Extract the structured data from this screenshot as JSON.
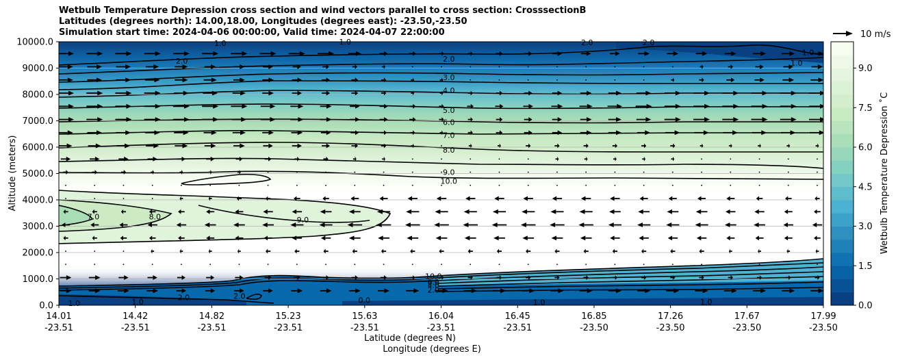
{
  "chart_data": {
    "type": "heatmap",
    "title_lines": [
      "Wetbulb Temperature Depression cross section and wind vectors parallel to cross section: CrosssectionB",
      "Latitudes (degrees north): 14.00,18.00, Longitudes (degrees east): -23.50,-23.50",
      "Simulation start time: 2024-04-06 00:00:00, Valid time: 2024-04-07 22:00:00"
    ],
    "ylabel": "Altitude (meters)",
    "xlabel_lines": [
      "Latitude (degrees N)",
      "Longitude (degrees E)"
    ],
    "ylim": [
      0,
      10000
    ],
    "y_ticks": [
      {
        "value": 0,
        "label": "0.0"
      },
      {
        "value": 1000,
        "label": "1000.0"
      },
      {
        "value": 2000,
        "label": "2000.0"
      },
      {
        "value": 3000,
        "label": "3000.0"
      },
      {
        "value": 4000,
        "label": "4000.0"
      },
      {
        "value": 5000,
        "label": "5000.0"
      },
      {
        "value": 6000,
        "label": "6000.0"
      },
      {
        "value": 7000,
        "label": "7000.0"
      },
      {
        "value": 8000,
        "label": "8000.0"
      },
      {
        "value": 9000,
        "label": "9000.0"
      },
      {
        "value": 10000,
        "label": "10000.0"
      }
    ],
    "x_ticks": [
      {
        "lat": "14.01",
        "lon": "-23.51"
      },
      {
        "lat": "14.42",
        "lon": "-23.51"
      },
      {
        "lat": "14.82",
        "lon": "-23.51"
      },
      {
        "lat": "15.23",
        "lon": "-23.51"
      },
      {
        "lat": "15.63",
        "lon": "-23.51"
      },
      {
        "lat": "16.04",
        "lon": "-23.51"
      },
      {
        "lat": "16.45",
        "lon": "-23.51"
      },
      {
        "lat": "16.85",
        "lon": "-23.50"
      },
      {
        "lat": "17.26",
        "lon": "-23.50"
      },
      {
        "lat": "17.67",
        "lon": "-23.50"
      },
      {
        "lat": "17.99",
        "lon": "-23.50"
      }
    ],
    "colorbar": {
      "label": "Wetbulb Temperature Depression ˚C",
      "range": [
        0,
        10
      ],
      "ticks": [
        "0.0",
        "1.5",
        "3.0",
        "4.5",
        "6.0",
        "7.5",
        "9.0"
      ],
      "tick_values": [
        0,
        1.5,
        3.0,
        4.5,
        6.0,
        7.5,
        9.0
      ],
      "colormap": "GnBu_r",
      "colors": [
        "#084081",
        "#0868ac",
        "#2b8cbe",
        "#4eb3d3",
        "#7bccc4",
        "#a8ddb5",
        "#ccebc5",
        "#e0f3db",
        "#f7fcf0"
      ]
    },
    "quiver_key": {
      "label": "10 m/s",
      "speed_ms": 10
    },
    "contour_labels": [
      {
        "text": "2.0",
        "lat": 14.65,
        "alt": 9270
      },
      {
        "text": "2.0",
        "lat": 16.04,
        "alt": 9350
      },
      {
        "text": "1.0",
        "lat": 14.85,
        "alt": 9950
      },
      {
        "text": "1.0",
        "lat": 15.5,
        "alt": 10000
      },
      {
        "text": "2.0",
        "lat": 16.76,
        "alt": 9980
      },
      {
        "text": "2.0",
        "lat": 17.08,
        "alt": 9980
      },
      {
        "text": "1.0",
        "lat": 17.91,
        "alt": 9600
      },
      {
        "text": "3.0",
        "lat": 16.04,
        "alt": 8650
      },
      {
        "text": "4.0",
        "lat": 16.04,
        "alt": 8150
      },
      {
        "text": "5.0",
        "lat": 16.04,
        "alt": 7400
      },
      {
        "text": "6.0",
        "lat": 16.04,
        "alt": 6950
      },
      {
        "text": "7.0",
        "lat": 16.04,
        "alt": 6460
      },
      {
        "text": "8.0",
        "lat": 16.04,
        "alt": 5900
      },
      {
        "text": "9.0",
        "lat": 16.04,
        "alt": 5050
      },
      {
        "text": "10.0",
        "lat": 16.04,
        "alt": 4720
      },
      {
        "text": "7.0",
        "lat": 14.19,
        "alt": 3360
      },
      {
        "text": "8.0",
        "lat": 14.51,
        "alt": 3360
      },
      {
        "text": "9.0",
        "lat": 15.28,
        "alt": 3250
      },
      {
        "text": "10.0",
        "lat": 15.96,
        "alt": 1100
      },
      {
        "text": "6.0",
        "lat": 15.96,
        "alt": 880
      },
      {
        "text": "4.0",
        "lat": 15.96,
        "alt": 760
      },
      {
        "text": "2.0",
        "lat": 15.96,
        "alt": 580
      },
      {
        "text": "1.0",
        "lat": 14.09,
        "alt": 80
      },
      {
        "text": "1.0",
        "lat": 14.42,
        "alt": 130
      },
      {
        "text": "2.0",
        "lat": 14.66,
        "alt": 300
      },
      {
        "text": "2.0",
        "lat": 14.95,
        "alt": 350
      },
      {
        "text": "0.0",
        "lat": 15.6,
        "alt": 200
      },
      {
        "text": "1.0",
        "lat": 16.51,
        "alt": 120
      },
      {
        "text": "1.0",
        "lat": 17.38,
        "alt": 130
      },
      {
        "text": "1.0",
        "lat": 17.85,
        "alt": 9200
      }
    ],
    "wind_rows": [
      {
        "alt": 9550,
        "dir": 1,
        "strength": [
          1,
          1,
          1,
          1,
          1,
          1,
          1,
          1,
          1,
          1,
          0.8,
          0.5,
          0.4,
          0.3,
          0.3,
          0.4,
          0.5,
          0.6,
          0.6,
          0.6,
          0.7,
          0.7,
          0.7,
          0.7,
          0.8,
          0.8,
          0.8
        ]
      },
      {
        "alt": 9050,
        "dir": 1,
        "strength": [
          0.9,
          0.9,
          0.9,
          0.8,
          0.8,
          0.7,
          0.7,
          0.6,
          0.5,
          0.4,
          0.3,
          0.2,
          0.1,
          0.0,
          0.1,
          0.1,
          0.1,
          0.1,
          0.1,
          0.1,
          0.1,
          0.1,
          0.2,
          0.3,
          0.5,
          0.6,
          0.7
        ]
      },
      {
        "alt": 8550,
        "dir": 1,
        "strength": [
          0.9,
          0.9,
          0.9,
          0.9,
          0.8,
          0.8,
          0.7,
          0.7,
          0.6,
          0.5,
          0.4,
          0.3,
          0.2,
          0.2,
          0.1,
          0.1,
          0.1,
          0.1,
          0.1,
          0.1,
          0.1,
          0.2,
          0.3,
          0.5,
          0.6,
          0.7,
          0.8
        ]
      },
      {
        "alt": 8050,
        "dir": 1,
        "strength": [
          1,
          1,
          1,
          1,
          0.9,
          0.9,
          0.8,
          0.7,
          0.6,
          0.5,
          0.4,
          0.3,
          0.2,
          0.2,
          0.3,
          0.4,
          0.5,
          0.6,
          0.7,
          0.8,
          0.9,
          1,
          1,
          1,
          1,
          1,
          1
        ]
      },
      {
        "alt": 7550,
        "dir": 1,
        "strength": [
          1,
          1,
          1,
          1,
          1,
          1,
          1,
          0.9,
          0.8,
          0.7,
          0.6,
          0.5,
          0.4,
          0.3,
          0.4,
          0.5,
          0.6,
          0.7,
          0.8,
          0.9,
          1,
          1,
          1,
          1,
          1,
          1,
          1
        ]
      },
      {
        "alt": 7050,
        "dir": 1,
        "strength": [
          1,
          1,
          1,
          1,
          1,
          1,
          0.9,
          0.9,
          0.8,
          0.7,
          0.6,
          0.5,
          0.4,
          0.3,
          0.3,
          0.4,
          0.5,
          0.6,
          0.7,
          0.8,
          0.9,
          1,
          1,
          1,
          1,
          1,
          1
        ]
      },
      {
        "alt": 6550,
        "dir": 1,
        "strength": [
          0.9,
          0.9,
          0.9,
          0.9,
          0.9,
          0.8,
          0.8,
          0.7,
          0.7,
          0.6,
          0.5,
          0.4,
          0.3,
          0.2,
          0.3,
          0.4,
          0.5,
          0.6,
          0.7,
          0.8,
          0.8,
          0.9,
          0.9,
          0.9,
          0.9,
          0.9,
          0.9
        ]
      },
      {
        "alt": 6050,
        "dir": 1,
        "strength": [
          0.8,
          0.8,
          0.8,
          0.8,
          0.8,
          0.7,
          0.7,
          0.6,
          0.6,
          0.5,
          0.4,
          0.3,
          0.2,
          0.1,
          0.2,
          0.2,
          0.3,
          0.3,
          0.3,
          0.3,
          0.3,
          0.3,
          0.2,
          0.2,
          0.2,
          0.2,
          0.2
        ]
      },
      {
        "alt": 5550,
        "dir": 1,
        "strength": [
          0.6,
          0.6,
          0.6,
          0.6,
          0.5,
          0.5,
          0.4,
          0.4,
          0.3,
          0.3,
          0.2,
          0.2,
          0.1,
          0.1,
          0.1,
          0.1,
          0.1,
          0.2,
          0.2,
          0.2,
          0.2,
          0.2,
          0.1,
          0.1,
          0.1,
          0.1,
          0.1
        ]
      },
      {
        "alt": 5050,
        "dir": 1,
        "strength": [
          0.3,
          0.3,
          0.3,
          0.2,
          0.2,
          0.2,
          0.2,
          0.1,
          0.1,
          0.1,
          0.1,
          0.1,
          0.1,
          0.1,
          0.1,
          0.1,
          0.1,
          0.1,
          0.1,
          0.1,
          0.1,
          0.1,
          0.1,
          0.1,
          0.1,
          0.1,
          0.1
        ]
      },
      {
        "alt": 4550,
        "dir": -1,
        "strength": [
          0.1,
          0.1,
          0.1,
          0.1,
          0.1,
          0.1,
          0.1,
          0.1,
          0.1,
          0.1,
          0.1,
          0.1,
          0.1,
          0.1,
          0.1,
          0.1,
          0.1,
          0.1,
          0.1,
          0.1,
          0.1,
          0.1,
          0.1,
          0.1,
          0.1,
          0.1,
          0.1
        ]
      },
      {
        "alt": 4050,
        "dir": -1,
        "strength": [
          0.1,
          0.1,
          0.1,
          0.1,
          0.2,
          0.2,
          0.3,
          0.3,
          0.4,
          0.4,
          0.5,
          0.5,
          0.6,
          0.6,
          0.6,
          0.6,
          0.6,
          0.6,
          0.6,
          0.6,
          0.5,
          0.5,
          0.5,
          0.5,
          0.4,
          0.4,
          0.3
        ]
      },
      {
        "alt": 3550,
        "dir": -1,
        "strength": [
          0.3,
          0.3,
          0.3,
          0.4,
          0.4,
          0.5,
          0.5,
          0.6,
          0.6,
          0.7,
          0.7,
          0.8,
          0.8,
          0.8,
          0.8,
          0.8,
          0.8,
          0.8,
          0.8,
          0.7,
          0.7,
          0.7,
          0.7,
          0.6,
          0.6,
          0.5,
          0.4
        ]
      },
      {
        "alt": 3050,
        "dir": -1,
        "strength": [
          0.5,
          0.5,
          0.5,
          0.6,
          0.6,
          0.7,
          0.7,
          0.7,
          0.8,
          0.8,
          0.9,
          0.9,
          0.9,
          0.9,
          0.9,
          0.9,
          0.9,
          0.9,
          0.9,
          0.8,
          0.8,
          0.8,
          0.8,
          0.7,
          0.7,
          0.6,
          0.6
        ]
      },
      {
        "alt": 2550,
        "dir": -1,
        "strength": [
          0.3,
          0.3,
          0.4,
          0.4,
          0.4,
          0.5,
          0.5,
          0.5,
          0.6,
          0.6,
          0.7,
          0.7,
          0.7,
          0.7,
          0.7,
          0.7,
          0.7,
          0.7,
          0.7,
          0.6,
          0.6,
          0.6,
          0.6,
          0.5,
          0.5,
          0.5,
          0.4
        ]
      },
      {
        "alt": 2050,
        "dir": -1,
        "strength": [
          0.1,
          0.1,
          0.1,
          0.2,
          0.2,
          0.2,
          0.2,
          0.3,
          0.3,
          0.3,
          0.3,
          0.3,
          0.3,
          0.3,
          0.3,
          0.3,
          0.3,
          0.3,
          0.3,
          0.3,
          0.3,
          0.3,
          0.3,
          0.2,
          0.2,
          0.2,
          0.2
        ]
      },
      {
        "alt": 1550,
        "dir": 1,
        "strength": [
          0.1,
          0.1,
          0.1,
          0.1,
          0.1,
          0.1,
          0.1,
          0.1,
          0.1,
          0.1,
          0.1,
          0.1,
          0.1,
          0.1,
          0.1,
          0.1,
          0.1,
          0.1,
          0.1,
          0.1,
          0.1,
          0.1,
          0.1,
          0.1,
          0.1,
          0.1,
          0.1
        ]
      },
      {
        "alt": 1050,
        "dir": 1,
        "strength": [
          0.7,
          0.7,
          0.6,
          0.6,
          0.5,
          0.5,
          0.5,
          0.4,
          0.4,
          0.4,
          0.4,
          0.4,
          0.3,
          0.3,
          0.3,
          0.3,
          0.3,
          0.3,
          0.3,
          0.3,
          0.3,
          0.3,
          0.3,
          0.3,
          0.3,
          0.3,
          0.3
        ]
      },
      {
        "alt": 550,
        "dir": 1,
        "strength": [
          0.7,
          0.7,
          0.7,
          0.7,
          0.6,
          0.6,
          0.6,
          0.6,
          0.7,
          0.7,
          0.7,
          0.7,
          0.8,
          0.8,
          0.8,
          0.8,
          0.8,
          0.8,
          0.8,
          0.8,
          0.8,
          0.8,
          0.8,
          0.8,
          0.8,
          0.8,
          0.8
        ]
      }
    ]
  }
}
